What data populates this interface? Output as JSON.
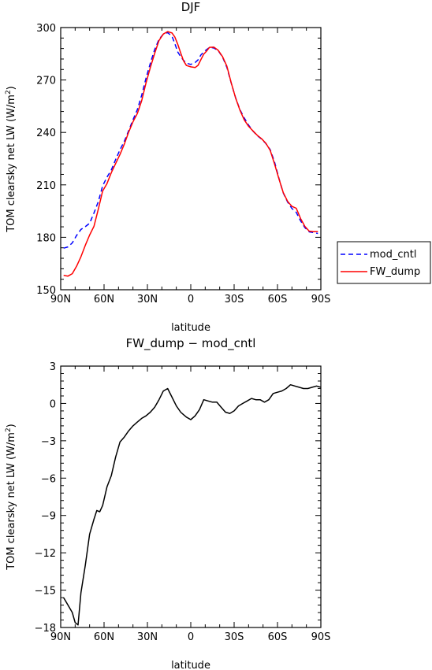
{
  "chart_data": [
    {
      "type": "line",
      "title": "DJF",
      "xlabel": "latitude",
      "ylabel": "TOM clearsky net LW (W/m²)",
      "ylabel_base": "TOM clearsky net LW (W/m",
      "ylabel_sup": "2",
      "ylabel_end": ")",
      "xlim": [
        -90,
        90
      ],
      "ylim": [
        150,
        300
      ],
      "xticks": [
        -90,
        -60,
        -30,
        0,
        30,
        60,
        90
      ],
      "xticklabels": [
        "90N",
        "60N",
        "30N",
        "0",
        "30S",
        "60S",
        "90S"
      ],
      "yticks": [
        150,
        180,
        210,
        240,
        270,
        300
      ],
      "yticklabels": [
        "150",
        "180",
        "210",
        "240",
        "270",
        "300"
      ],
      "legend_position": "right",
      "series": [
        {
          "name": "mod_cntl",
          "color": "#0000ff",
          "dash": "dashed",
          "x": [
            -88,
            -85,
            -82,
            -79,
            -76,
            -73,
            -70,
            -67,
            -64,
            -61,
            -58,
            -55,
            -52,
            -49,
            -46,
            -43,
            -40,
            -37,
            -34,
            -31,
            -28,
            -25,
            -22,
            -19,
            -16,
            -13,
            -11,
            -9,
            -7,
            -5,
            -3,
            0,
            3,
            5,
            7,
            9,
            11,
            13,
            16,
            19,
            22,
            25,
            28,
            31,
            34,
            37,
            40,
            43,
            46,
            49,
            52,
            55,
            58,
            61,
            64,
            67,
            70,
            73,
            76,
            79,
            82,
            85,
            88
          ],
          "y": [
            173.8,
            174.5,
            176.8,
            181.1,
            184.5,
            186.1,
            188,
            193.9,
            200.4,
            209.4,
            214.4,
            218.5,
            224.5,
            230.1,
            234.9,
            241,
            247.2,
            253,
            261.2,
            271,
            279.6,
            287.4,
            293.3,
            296.2,
            297.1,
            295,
            290.8,
            286,
            283.4,
            281.2,
            279.6,
            278.9,
            280,
            281.5,
            284.3,
            286.1,
            287.4,
            288.7,
            288.3,
            286.8,
            283.1,
            277.2,
            268.3,
            259.9,
            253.1,
            248.3,
            244.2,
            240.8,
            238.2,
            236.2,
            233.6,
            230.1,
            223,
            213.8,
            205.4,
            200.2,
            196.5,
            194.3,
            189.4,
            185.5,
            183.1,
            182.7,
            182.2
          ]
        },
        {
          "name": "FW_dump",
          "color": "#ff0000",
          "dash": "solid",
          "x": [
            -88,
            -85,
            -82,
            -79,
            -76,
            -73,
            -70,
            -67,
            -64,
            -61,
            -58,
            -55,
            -52,
            -49,
            -46,
            -43,
            -40,
            -37,
            -34,
            -31,
            -28,
            -25,
            -22,
            -19,
            -16,
            -13,
            -11,
            -9,
            -7,
            -5,
            -3,
            0,
            3,
            5,
            7,
            9,
            11,
            13,
            16,
            19,
            22,
            25,
            28,
            31,
            34,
            37,
            40,
            43,
            46,
            49,
            52,
            55,
            58,
            61,
            64,
            67,
            70,
            73,
            76,
            79,
            82,
            85,
            88
          ],
          "y": [
            158.2,
            157.8,
            159.2,
            163.5,
            168.9,
            175.4,
            181.3,
            186.3,
            196.1,
            206.5,
            210.7,
            217,
            222.2,
            227.4,
            233.3,
            240.2,
            246.1,
            250.8,
            258.1,
            268.3,
            277.1,
            285.2,
            292.6,
            296.3,
            297.7,
            296.9,
            294.6,
            290.4,
            285.5,
            281,
            278.3,
            277.5,
            277.1,
            278.4,
            281.6,
            284.8,
            286.6,
            288.7,
            288.8,
            287,
            283.4,
            277.9,
            268.4,
            259.8,
            252.8,
            247.2,
            243.5,
            240.9,
            238.4,
            236.4,
            233.8,
            229.7,
            221.9,
            213.5,
            205.6,
            200.6,
            197.7,
            196.6,
            190.7,
            186.2,
            183.5,
            183.2,
            183.2
          ]
        }
      ]
    },
    {
      "type": "line",
      "title": "FW_dump − mod_cntl",
      "xlabel": "latitude",
      "ylabel": "TOM clearsky net LW (W/m²)",
      "ylabel_base": "TOM clearsky net LW (W/m",
      "ylabel_sup": "2",
      "ylabel_end": ")",
      "xlim": [
        -90,
        90
      ],
      "ylim": [
        -18,
        3
      ],
      "xticks": [
        -90,
        -60,
        -30,
        0,
        30,
        60,
        90
      ],
      "xticklabels": [
        "90N",
        "60N",
        "30N",
        "0",
        "30S",
        "60S",
        "90S"
      ],
      "yticks": [
        -18,
        -15,
        -12,
        -9,
        -6,
        -3,
        0,
        3
      ],
      "yticklabels": [
        "−18",
        "−15",
        "−12",
        "−9",
        "−6",
        "−3",
        "0",
        "3"
      ],
      "series": [
        {
          "color": "#000000",
          "dash": "solid",
          "x": [
            -88,
            -85,
            -82,
            -80,
            -78,
            -76,
            -73,
            -70,
            -67,
            -65,
            -63,
            -61,
            -58,
            -55,
            -52,
            -49,
            -46,
            -43,
            -40,
            -37,
            -34,
            -31,
            -28,
            -25,
            -22,
            -19,
            -16,
            -13,
            -10,
            -7,
            -5,
            -3,
            0,
            3,
            6,
            9,
            12,
            15,
            18,
            21,
            24,
            27,
            30,
            33,
            36,
            39,
            42,
            45,
            48,
            51,
            54,
            57,
            60,
            63,
            66,
            69,
            72,
            75,
            78,
            81,
            84,
            87,
            90
          ],
          "y": [
            -15.6,
            -16.2,
            -16.8,
            -17.6,
            -17.8,
            -15.2,
            -13,
            -10.5,
            -9.3,
            -8.6,
            -8.7,
            -8.2,
            -6.7,
            -5.8,
            -4.3,
            -3.1,
            -2.7,
            -2.2,
            -1.8,
            -1.5,
            -1.2,
            -1,
            -0.7,
            -0.3,
            0.3,
            1,
            1.2,
            0.5,
            -0.2,
            -0.7,
            -0.9,
            -1.1,
            -1.3,
            -1,
            -0.5,
            0.3,
            0.2,
            0.1,
            0.1,
            -0.3,
            -0.7,
            -0.8,
            -0.6,
            -0.2,
            0,
            0.2,
            0.4,
            0.3,
            0.3,
            0.1,
            0.3,
            0.8,
            0.9,
            1,
            1.2,
            1.5,
            1.4,
            1.3,
            1.2,
            1.2,
            1.3,
            1.4,
            1.3
          ]
        }
      ]
    }
  ]
}
